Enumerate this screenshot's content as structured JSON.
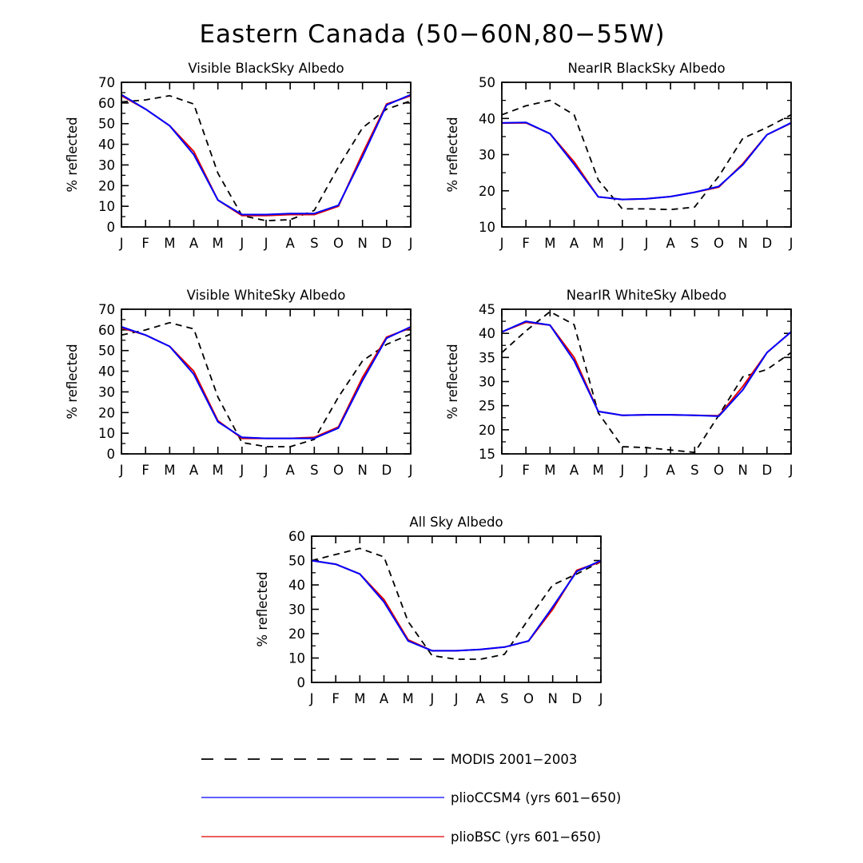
{
  "figure_title": "Eastern Canada (50−60N,80−55W)",
  "chart_data": [
    {
      "type": "line",
      "title": "Visible BlackSky Albedo",
      "xlabel": "",
      "ylabel": "% reflected",
      "categories": [
        "J",
        "F",
        "M",
        "A",
        "M",
        "J",
        "J",
        "A",
        "S",
        "O",
        "N",
        "D",
        "J"
      ],
      "ylim": [
        0,
        70
      ],
      "yticks": [
        0,
        10,
        20,
        30,
        40,
        50,
        60,
        70
      ],
      "series": [
        {
          "name": "MODIS 2001−2003",
          "values": [
            60.5,
            61.5,
            63.5,
            59.5,
            26,
            5.5,
            3,
            3.5,
            8,
            29,
            48,
            57,
            61
          ]
        },
        {
          "name": "plioBSC (yrs 601−650)",
          "values": [
            63.5,
            57,
            49,
            36.5,
            13,
            5.5,
            5.5,
            6,
            6,
            10,
            35.5,
            59.5,
            63.5
          ]
        },
        {
          "name": "plioCCSM4 (yrs 601−650)",
          "values": [
            64,
            57,
            49,
            35,
            13,
            6,
            6,
            6.5,
            6.5,
            10.5,
            34,
            59,
            64
          ]
        }
      ]
    },
    {
      "type": "line",
      "title": "NearIR BlackSky Albedo",
      "xlabel": "",
      "ylabel": "% reflected",
      "categories": [
        "J",
        "F",
        "M",
        "A",
        "M",
        "J",
        "J",
        "A",
        "S",
        "O",
        "N",
        "D",
        "J"
      ],
      "ylim": [
        10,
        50
      ],
      "yticks": [
        10,
        20,
        30,
        40,
        50
      ],
      "series": [
        {
          "name": "MODIS 2001−2003",
          "values": [
            41,
            43.5,
            45,
            41,
            23,
            15,
            15,
            14.8,
            15.5,
            24,
            34.5,
            37.5,
            41
          ]
        },
        {
          "name": "plioBSC (yrs 601−650)",
          "values": [
            38.7,
            38.8,
            35.8,
            28,
            18.3,
            17.6,
            17.8,
            18.4,
            19.6,
            21,
            27.5,
            35.5,
            38.7
          ]
        },
        {
          "name": "plioCCSM4 (yrs 601−650)",
          "values": [
            38.8,
            38.9,
            35.8,
            27.3,
            18.3,
            17.6,
            17.8,
            18.4,
            19.6,
            21.2,
            27.2,
            35.5,
            38.8
          ]
        }
      ]
    },
    {
      "type": "line",
      "title": "Visible WhiteSky Albedo",
      "xlabel": "",
      "ylabel": "% reflected",
      "categories": [
        "J",
        "F",
        "M",
        "A",
        "M",
        "J",
        "J",
        "A",
        "S",
        "O",
        "N",
        "D",
        "J"
      ],
      "ylim": [
        0,
        70
      ],
      "yticks": [
        0,
        10,
        20,
        30,
        40,
        50,
        60,
        70
      ],
      "series": [
        {
          "name": "MODIS 2001−2003",
          "values": [
            57.5,
            60,
            63.5,
            60.5,
            27.5,
            5.5,
            3.5,
            3.5,
            7,
            27.5,
            45,
            53,
            58
          ]
        },
        {
          "name": "plioBSC (yrs 601−650)",
          "values": [
            61,
            57.5,
            52,
            40,
            16,
            7.5,
            7.5,
            7.5,
            8,
            13,
            37,
            56.5,
            61
          ]
        },
        {
          "name": "plioCCSM4 (yrs 601−650)",
          "values": [
            61.5,
            57.5,
            52,
            38.5,
            15.5,
            8,
            7.5,
            7.5,
            7.5,
            12.5,
            35.5,
            56,
            61.5
          ]
        }
      ]
    },
    {
      "type": "line",
      "title": "NearIR WhiteSky Albedo",
      "xlabel": "",
      "ylabel": "% reflected",
      "categories": [
        "J",
        "F",
        "M",
        "A",
        "M",
        "J",
        "J",
        "A",
        "S",
        "O",
        "N",
        "D",
        "J"
      ],
      "ylim": [
        15,
        45
      ],
      "yticks": [
        15,
        20,
        25,
        30,
        35,
        40,
        45
      ],
      "series": [
        {
          "name": "MODIS 2001−2003",
          "values": [
            36,
            40.5,
            44.5,
            41.8,
            23.5,
            16.5,
            16.3,
            15.8,
            15.3,
            23,
            31,
            32.5,
            36
          ]
        },
        {
          "name": "plioBSC (yrs 601−650)",
          "values": [
            40.3,
            42.3,
            41.7,
            35,
            23.8,
            23,
            23.1,
            23.1,
            23,
            22.9,
            29,
            36,
            40.3
          ]
        },
        {
          "name": "plioCCSM4 (yrs 601−650)",
          "values": [
            40.3,
            42.5,
            41.7,
            34.3,
            23.8,
            23,
            23.1,
            23.1,
            23,
            22.8,
            28.3,
            36,
            40.3
          ]
        }
      ]
    },
    {
      "type": "line",
      "title": "All Sky Albedo",
      "xlabel": "",
      "ylabel": "% reflected",
      "categories": [
        "J",
        "F",
        "M",
        "A",
        "M",
        "J",
        "J",
        "A",
        "S",
        "O",
        "N",
        "D",
        "J"
      ],
      "ylim": [
        0,
        60
      ],
      "yticks": [
        0,
        10,
        20,
        30,
        40,
        50,
        60
      ],
      "series": [
        {
          "name": "MODIS 2001−2003",
          "values": [
            50,
            52.5,
            55,
            51.5,
            25,
            11,
            9.5,
            9.5,
            11.5,
            26,
            40,
            44.5,
            49.5
          ]
        },
        {
          "name": "plioBSC (yrs 601−650)",
          "values": [
            50,
            48.5,
            44.5,
            34,
            17.5,
            13,
            13,
            13.5,
            14.5,
            17,
            30,
            46,
            49.5
          ]
        },
        {
          "name": "plioCCSM4 (yrs 601−650)",
          "values": [
            50,
            48.5,
            44.5,
            33,
            17,
            13,
            13,
            13.5,
            14.5,
            17,
            31,
            45.5,
            50
          ]
        }
      ]
    }
  ],
  "legend": [
    {
      "label": "MODIS 2001−2003",
      "style": "dashed",
      "color": "#000000"
    },
    {
      "label": "plioCCSM4 (yrs 601−650)",
      "style": "solid",
      "color": "#0000ff"
    },
    {
      "label": "plioBSC (yrs 601−650)",
      "style": "solid",
      "color": "#e00000"
    }
  ],
  "series_colors": {
    "MODIS 2001−2003": "#000000",
    "plioBSC (yrs 601−650)": "#e00000",
    "plioCCSM4 (yrs 601−650)": "#0000ff"
  }
}
